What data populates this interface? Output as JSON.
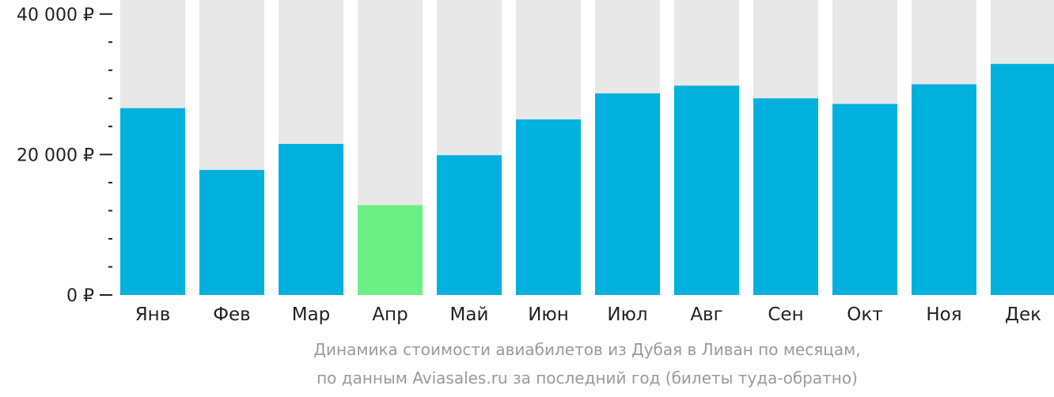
{
  "chart_data": {
    "type": "bar",
    "title": "",
    "xlabel": "",
    "ylabel": "",
    "categories": [
      "Янв",
      "Фев",
      "Мар",
      "Апр",
      "Май",
      "Июн",
      "Июл",
      "Авг",
      "Сен",
      "Окт",
      "Ноя",
      "Дек"
    ],
    "values": [
      26600,
      17800,
      21500,
      12800,
      19900,
      25000,
      28700,
      29800,
      28000,
      27200,
      30000,
      32900
    ],
    "highlight_index": 3,
    "ylim": [
      0,
      42000
    ],
    "y_ticks": [
      {
        "value": 0,
        "label": "0 ₽"
      },
      {
        "value": 20000,
        "label": "20 000 ₽"
      },
      {
        "value": 40000,
        "label": "40 000 ₽"
      }
    ],
    "minor_tick_step": 4000,
    "grid": false,
    "legend": "none",
    "colors": {
      "bar": "#00b0dd",
      "highlight": "#6cf085",
      "background_track": "#e8e8e8",
      "axis": "#222222"
    }
  },
  "caption": {
    "line1": "Динамика стоимости авиабилетов из Дубая в Ливан по месяцам,",
    "line2": "по данным Aviasales.ru за последний год (билеты туда-обратно)"
  }
}
